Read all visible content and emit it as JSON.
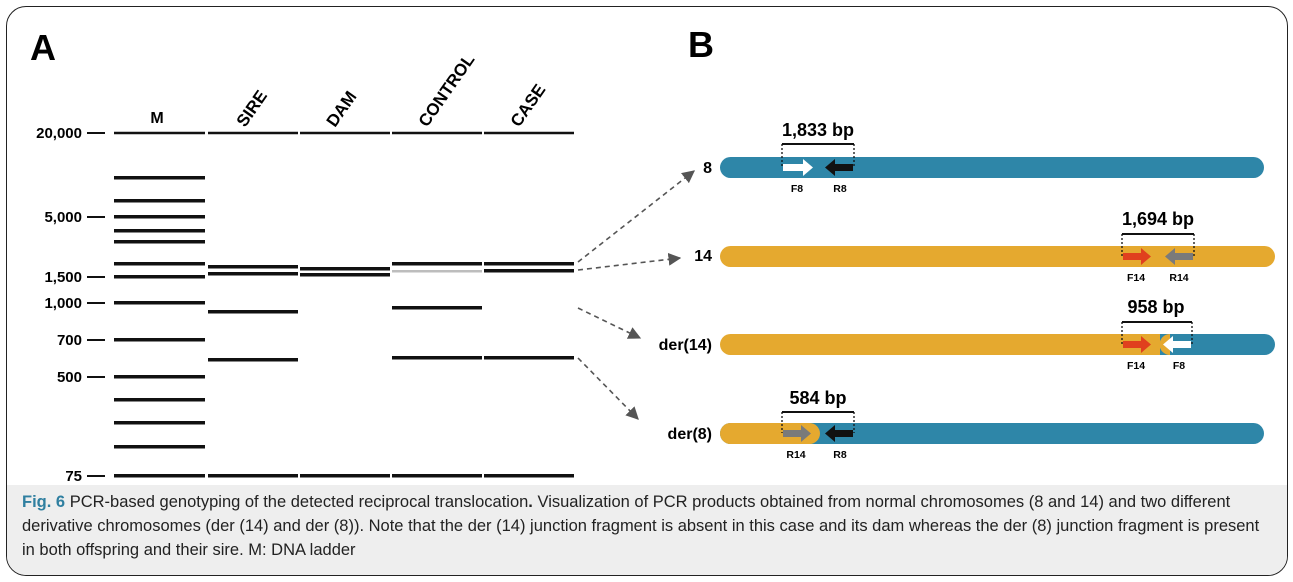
{
  "panels": {
    "a_label": "A",
    "b_label": "B"
  },
  "gel": {
    "lanes": [
      {
        "id": "m",
        "label": "M",
        "rotated": false
      },
      {
        "id": "sire",
        "label": "SIRE",
        "rotated": true
      },
      {
        "id": "dam",
        "label": "DAM",
        "rotated": true
      },
      {
        "id": "control",
        "label": "CONTROL",
        "rotated": true
      },
      {
        "id": "case",
        "label": "CASE",
        "rotated": true
      }
    ],
    "size_markers": [
      "20,000",
      "5,000",
      "1,500",
      "1,000",
      "700",
      "500",
      "75"
    ],
    "band_color": "#111111",
    "faint_band_color": "#bdbdbd"
  },
  "chromosomes": [
    {
      "label": "8",
      "product": "1,833 bp",
      "primers": [
        "F8",
        "R8"
      ]
    },
    {
      "label": "14",
      "product": "1,694 bp",
      "primers": [
        "F14",
        "R14"
      ]
    },
    {
      "label": "der(14)",
      "product": "958 bp",
      "primers": [
        "F14",
        "F8"
      ]
    },
    {
      "label": "der(8)",
      "product": "584 bp",
      "primers": [
        "R14",
        "R8"
      ]
    }
  ],
  "colors": {
    "chr8_blue": "#2e86a8",
    "chr14_orange": "#e5a92f",
    "primer_red": "#e0401e",
    "primer_grey": "#7a7a7a",
    "primer_black": "#111111",
    "primer_white": "#ffffff",
    "arrow_dashed": "#555555",
    "caption_label": "#2f7fa0"
  },
  "caption": {
    "fig_label": "Fig. 6",
    "title": "PCR-based genotyping of the detected reciprocal translocation",
    "title_end": ".",
    "body": "Visualization of PCR products obtained from normal chromosomes (8 and 14) and two different derivative chromosomes (der (14) and der (8)). Note that the der (14) junction fragment is absent in this case and its dam whereas the der (8) junction fragment is present in both offspring and their sire. M: DNA ladder"
  }
}
